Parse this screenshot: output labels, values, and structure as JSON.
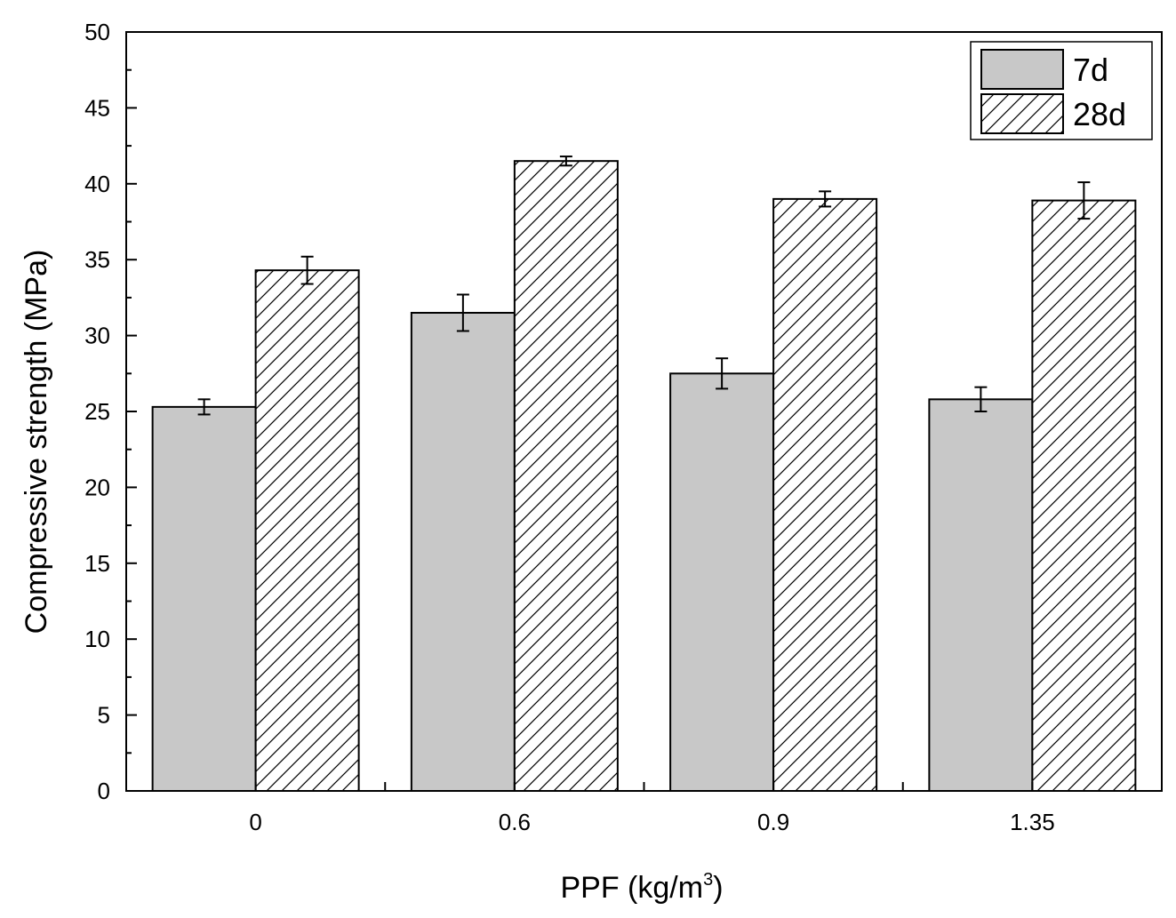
{
  "chart_data": {
    "type": "bar",
    "title": "",
    "categories": [
      "0",
      "0.6",
      "0.9",
      "1.35"
    ],
    "series": [
      {
        "name": "7d",
        "values": [
          25.3,
          31.5,
          27.5,
          25.8
        ],
        "errors": [
          0.5,
          1.2,
          1.0,
          0.8
        ],
        "fill": "#c8c8c8",
        "pattern": "solid"
      },
      {
        "name": "28d",
        "values": [
          34.3,
          41.5,
          39.0,
          38.9
        ],
        "errors": [
          0.9,
          0.3,
          0.5,
          1.2
        ],
        "fill": "#ffffff",
        "pattern": "diagonal-hatch"
      }
    ],
    "xlabel": "PPF (kg/m",
    "xlabel_sup": "3",
    "xlabel_end": ")",
    "ylabel": "Compressive strength (MPa)",
    "ylim": [
      0,
      50
    ],
    "yticks": [
      "0",
      "5",
      "10",
      "15",
      "20",
      "25",
      "30",
      "35",
      "40",
      "45",
      "50"
    ],
    "grid": false,
    "legend_position": "top-right"
  }
}
